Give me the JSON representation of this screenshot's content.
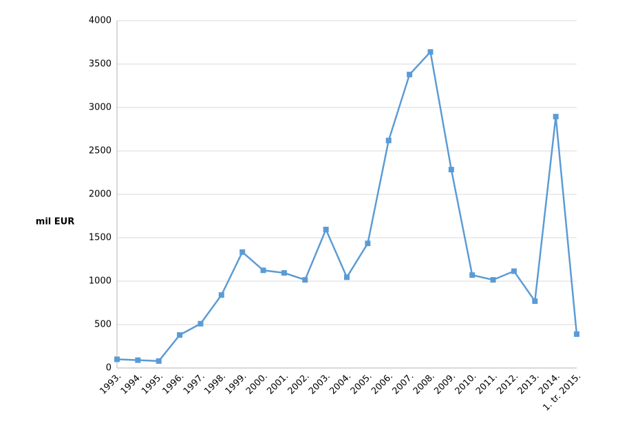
{
  "chart_data": {
    "type": "line",
    "y_label": "mil EUR",
    "categories": [
      "1993.",
      "1994.",
      "1995.",
      "1996.",
      "1997.",
      "1998.",
      "1999.",
      "2000.",
      "2001.",
      "2002.",
      "2003.",
      "2004.",
      "2005.",
      "2006.",
      "2007.",
      "2008.",
      "2009.",
      "2010.",
      "2011.",
      "2012.",
      "2013.",
      "2014.",
      "1. tr. 2015."
    ],
    "values": [
      100,
      90,
      80,
      380,
      510,
      840,
      1335,
      1125,
      1095,
      1015,
      1595,
      1045,
      1435,
      2620,
      3380,
      3640,
      2285,
      1070,
      1015,
      1115,
      770,
      2895,
      390
    ],
    "color": "#5b9bd5",
    "ylim": [
      0,
      4000
    ],
    "yticks": [
      0,
      500,
      1000,
      1500,
      2000,
      2500,
      3000,
      3500,
      4000
    ],
    "grid": true
  }
}
